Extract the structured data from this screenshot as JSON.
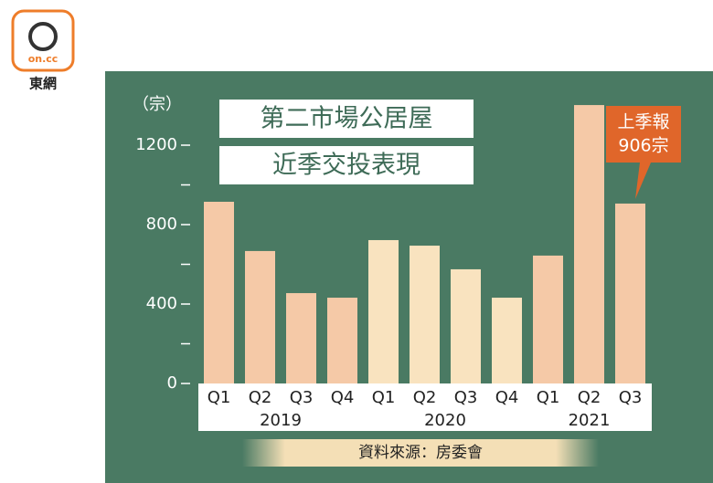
{
  "logo": {
    "mark": "on.cc",
    "name": "東網"
  },
  "chart_data": {
    "type": "bar",
    "title": [
      "第二市場公居屋",
      "近季交投表現"
    ],
    "y_label": "（宗）",
    "groups": [
      {
        "year": "2019",
        "color": "#f5c9a7",
        "categories": [
          "Q1",
          "Q2",
          "Q3",
          "Q4"
        ],
        "values": [
          915,
          667,
          455,
          432
        ]
      },
      {
        "year": "2020",
        "color": "#f9e3bf",
        "categories": [
          "Q1",
          "Q2",
          "Q3",
          "Q4"
        ],
        "values": [
          722,
          694,
          575,
          432
        ]
      },
      {
        "year": "2021",
        "color": "#f5c9a7",
        "categories": [
          "Q1",
          "Q2",
          "Q3"
        ],
        "values": [
          644,
          1402,
          906
        ]
      }
    ],
    "annotation": [
      "上季報",
      "906宗"
    ],
    "source": "資料來源：房委會",
    "ylim": [
      0,
      1400
    ],
    "yticks": [
      0,
      400,
      800,
      1200
    ],
    "yminorticks": [
      200,
      600,
      1000
    ]
  }
}
